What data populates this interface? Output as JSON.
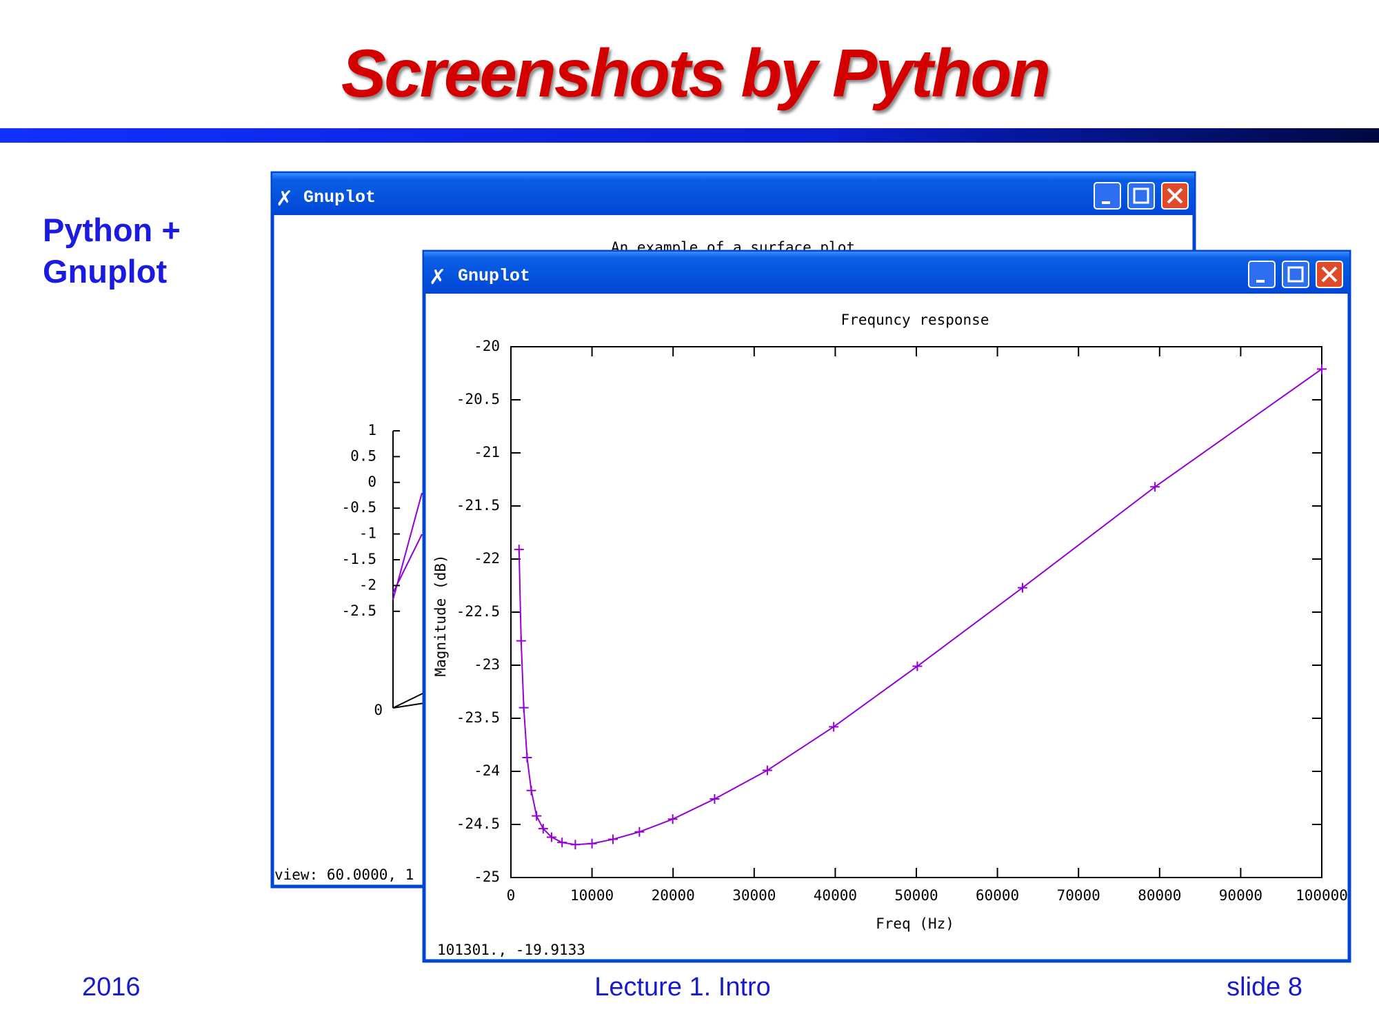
{
  "slide": {
    "title": "Screenshots by Python",
    "heading_line1": "Python +",
    "heading_line2": "Gnuplot",
    "footer_left": "2016",
    "footer_center": "Lecture 1. Intro",
    "footer_right": "slide 8"
  },
  "back_window": {
    "title": "Gnuplot",
    "plot_title": "An example of a surface plot",
    "zticks": [
      1,
      0.5,
      0,
      -0.5,
      -1,
      -1.5,
      -2,
      -2.5
    ],
    "origin_label": "0",
    "status": "view: 60.0000, 1"
  },
  "front_window": {
    "title": "Gnuplot",
    "status": "101301., -19.9133"
  },
  "chart_data": {
    "type": "line",
    "title": "Frequncy response",
    "xlabel": "Freq (Hz)",
    "ylabel": "Magnitude (dB)",
    "x": [
      1000,
      1259,
      1585,
      1995,
      2512,
      3162,
      3981,
      5012,
      6310,
      7943,
      10000,
      12589,
      15849,
      19953,
      25119,
      31623,
      39811,
      50119,
      63096,
      79433,
      100000
    ],
    "values": [
      -21.91,
      -22.77,
      -23.4,
      -23.87,
      -24.18,
      -24.42,
      -24.54,
      -24.62,
      -24.67,
      -24.69,
      -24.68,
      -24.64,
      -24.57,
      -24.45,
      -24.26,
      -23.99,
      -23.58,
      -23.01,
      -22.27,
      -21.32,
      -20.21
    ],
    "color": "#9400d3",
    "marker": "+",
    "xlim": [
      0,
      100000
    ],
    "xticks": [
      0,
      10000,
      20000,
      30000,
      40000,
      50000,
      60000,
      70000,
      80000,
      90000,
      100000
    ],
    "ylim": [
      -25,
      -20
    ],
    "yticks": [
      -20,
      -20.5,
      -21,
      -21.5,
      -22,
      -22.5,
      -23,
      -23.5,
      -24,
      -24.5,
      -25
    ],
    "grid": false
  }
}
